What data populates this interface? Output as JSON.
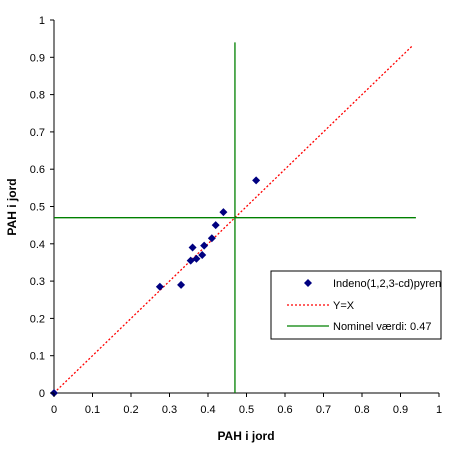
{
  "chart_data": {
    "type": "scatter",
    "xlabel": "PAH i jord",
    "ylabel": "PAH i jord",
    "xlim": [
      0,
      1
    ],
    "ylim": [
      0,
      1
    ],
    "x_ticks": [
      "0",
      "0.1",
      "0.2",
      "0.3",
      "0.4",
      "0.5",
      "0.6",
      "0.7",
      "0.8",
      "0.9",
      "1"
    ],
    "y_ticks": [
      "0",
      "0.1",
      "0.2",
      "0.3",
      "0.4",
      "0.5",
      "0.6",
      "0.7",
      "0.8",
      "0.9",
      "1"
    ],
    "grid": false,
    "legend_position": "right",
    "series": [
      {
        "name": "Indeno(1,2,3-cd)pyren",
        "kind": "scatter",
        "color": "#000080",
        "points": [
          [
            0,
            0
          ],
          [
            0.275,
            0.285
          ],
          [
            0.33,
            0.29
          ],
          [
            0.355,
            0.355
          ],
          [
            0.36,
            0.39
          ],
          [
            0.37,
            0.36
          ],
          [
            0.385,
            0.37
          ],
          [
            0.39,
            0.395
          ],
          [
            0.41,
            0.415
          ],
          [
            0.42,
            0.45
          ],
          [
            0.44,
            0.485
          ],
          [
            0.525,
            0.57
          ]
        ]
      },
      {
        "name": "Y=X",
        "kind": "line",
        "color": "#ff0000",
        "style": "dotted",
        "points": [
          [
            0,
            0
          ],
          [
            0.93,
            0.93
          ]
        ]
      },
      {
        "name": "Nominel værdi:  0.47",
        "kind": "crosshair",
        "color": "#008000",
        "value": 0.47,
        "extent": [
          0,
          0.94
        ]
      }
    ]
  }
}
